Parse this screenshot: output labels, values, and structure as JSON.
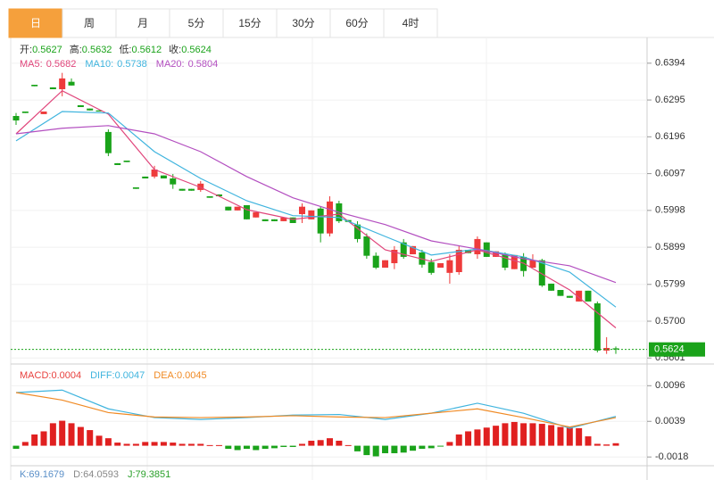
{
  "chart_data": {
    "type": "candlestick",
    "tabs": [
      "日",
      "周",
      "月",
      "5分",
      "15分",
      "30分",
      "60分",
      "4时"
    ],
    "active_tab": 0,
    "active_tab_color": "#f5a03c",
    "info_labels": [
      "开:",
      "高:",
      "低:",
      "收:"
    ],
    "info_value_color": "#1aa31a",
    "up_color": "#ee3b3b",
    "down_color": "#1aa31a",
    "grid": true,
    "ylim": [
      0.5592,
      0.6468
    ],
    "yticks": [
      0.6394,
      0.6295,
      0.6196,
      0.6097,
      0.5998,
      0.5899,
      0.5799,
      {
        "value": 0.57,
        "label": "0.5700"
      },
      0.5601
    ],
    "open": [
      0.6252,
      0.6264,
      0.6336,
      0.6257,
      0.6329,
      0.6324,
      0.6344,
      0.6281,
      0.6272,
      0.6267,
      0.6209,
      0.6125,
      0.6132,
      0.606,
      0.6089,
      0.6089,
      0.6092,
      0.6084,
      0.6056,
      0.6056,
      0.6053,
      0.6036,
      0.6041,
      0.6008,
      0.5998,
      0.6012,
      0.5979,
      0.5974,
      0.5974,
      0.5969,
      0.5979,
      0.5988,
      0.5974,
      0.6003,
      0.5936,
      0.6017,
      0.5972,
      0.596,
      0.5928,
      0.5876,
      0.5844,
      0.5856,
      0.5912,
      0.588,
      0.5885,
      0.5859,
      0.5844,
      0.583,
      0.5832,
      0.5892,
      0.588,
      0.5912,
      0.5873,
      0.588,
      0.584,
      0.5873,
      0.5844,
      0.5864,
      0.5801,
      0.5784,
      0.5768,
      0.5753,
      0.5782,
      0.5748,
      0.5621,
      0.5627
    ],
    "high": [
      0.626,
      0.6264,
      0.6336,
      0.6264,
      0.6329,
      0.6368,
      0.6353,
      0.6281,
      0.6272,
      0.6267,
      0.6216,
      0.6125,
      0.6132,
      0.606,
      0.6089,
      0.6118,
      0.6092,
      0.6096,
      0.6056,
      0.6056,
      0.6077,
      0.6036,
      0.6041,
      0.6008,
      0.6008,
      0.6012,
      0.5993,
      0.5974,
      0.5974,
      0.5979,
      0.5979,
      0.6017,
      0.5998,
      0.6008,
      0.6036,
      0.6024,
      0.5972,
      0.5969,
      0.5936,
      0.5885,
      0.5864,
      0.5902,
      0.5921,
      0.5902,
      0.5892,
      0.5868,
      0.5856,
      0.588,
      0.5902,
      0.5892,
      0.5928,
      0.5912,
      0.5888,
      0.5885,
      0.5878,
      0.5883,
      0.588,
      0.5868,
      0.5801,
      0.5784,
      0.5768,
      0.5782,
      0.5782,
      0.5753,
      0.5657,
      0.5632
    ],
    "low": [
      0.6228,
      0.626,
      0.6332,
      0.6257,
      0.6324,
      0.6305,
      0.6334,
      0.6276,
      0.6267,
      0.6264,
      0.6144,
      0.612,
      0.6128,
      0.6056,
      0.6084,
      0.6084,
      0.6084,
      0.6056,
      0.6051,
      0.6051,
      0.6048,
      0.6032,
      0.6036,
      0.5998,
      0.5998,
      0.5974,
      0.5979,
      0.5969,
      0.5969,
      0.5969,
      0.5964,
      0.5964,
      0.5974,
      0.5912,
      0.5928,
      0.5964,
      0.5967,
      0.5912,
      0.5868,
      0.584,
      0.5844,
      0.584,
      0.5868,
      0.588,
      0.5844,
      0.5825,
      0.5844,
      0.5801,
      0.5825,
      0.5883,
      0.5868,
      0.5873,
      0.5873,
      0.5837,
      0.584,
      0.582,
      0.5844,
      0.5792,
      0.5782,
      0.5768,
      0.5763,
      0.5753,
      0.5753,
      0.5616,
      0.5612,
      0.5612
    ],
    "close": [
      0.624,
      0.626,
      0.6332,
      0.6264,
      0.6324,
      0.6353,
      0.6334,
      0.6276,
      0.6267,
      0.6264,
      0.6152,
      0.612,
      0.6128,
      0.6056,
      0.6084,
      0.6108,
      0.6084,
      0.6068,
      0.6051,
      0.6051,
      0.607,
      0.6032,
      0.6036,
      0.5998,
      0.6008,
      0.5974,
      0.5993,
      0.5969,
      0.5969,
      0.5979,
      0.5964,
      0.6008,
      0.5998,
      0.5936,
      0.6022,
      0.5969,
      0.5967,
      0.5921,
      0.5876,
      0.5844,
      0.5864,
      0.5892,
      0.5873,
      0.5902,
      0.5852,
      0.583,
      0.5856,
      0.5864,
      0.5892,
      0.5883,
      0.5921,
      0.5873,
      0.5888,
      0.5844,
      0.5878,
      0.5835,
      0.5864,
      0.5796,
      0.5782,
      0.5768,
      0.5763,
      0.5782,
      0.5753,
      0.5621,
      0.5628,
      0.5624
    ],
    "last_price_color": "#1aa31a",
    "ma": [
      {
        "name": "MA5:",
        "color": "#e0457b",
        "x": [
          0,
          5,
          10,
          15,
          20,
          25,
          30,
          35,
          40,
          45,
          50,
          55,
          60,
          65
        ],
        "values": [
          0.6204,
          0.632,
          0.6257,
          0.6108,
          0.606,
          0.6,
          0.5974,
          0.5988,
          0.5892,
          0.5861,
          0.5892,
          0.5856,
          0.5784,
          0.5682
        ]
      },
      {
        "name": "MA10:",
        "color": "#3fb4de",
        "x": [
          0,
          5,
          10,
          15,
          20,
          25,
          30,
          35,
          40,
          45,
          50,
          55,
          60,
          65
        ],
        "values": [
          0.6185,
          0.6264,
          0.626,
          0.6156,
          0.6084,
          0.6024,
          0.5984,
          0.5979,
          0.5928,
          0.5878,
          0.5894,
          0.5873,
          0.5832,
          0.5738
        ]
      },
      {
        "name": "MA20:",
        "color": "#b34fc0",
        "x": [
          0,
          5,
          10,
          15,
          20,
          25,
          30,
          35,
          40,
          45,
          50,
          55,
          60,
          65
        ],
        "values": [
          0.6204,
          0.6219,
          0.6226,
          0.6204,
          0.6156,
          0.6089,
          0.6032,
          0.5993,
          0.596,
          0.5916,
          0.5894,
          0.5868,
          0.5849,
          0.5804
        ]
      }
    ],
    "macd": {
      "ylim": [
        -0.0032,
        0.0125
      ],
      "yticks": [
        0.0096,
        0.0039,
        -0.0018
      ],
      "histogram": {
        "name": "MACD:",
        "color": "#e8413e",
        "up_color": "#e02020",
        "down_color": "#1aa31a",
        "values": [
          -0.0005,
          0.0006,
          0.0018,
          0.0023,
          0.0036,
          0.004,
          0.0036,
          0.003,
          0.0025,
          0.0016,
          0.0012,
          0.0005,
          0.0003,
          0.0003,
          0.0006,
          0.0006,
          0.0006,
          0.0005,
          0.0003,
          0.0003,
          0.0003,
          0.0001,
          0.0001,
          -0.0005,
          -0.0007,
          -0.0005,
          -0.0007,
          -0.0005,
          -0.0004,
          -0.0002,
          -0.0002,
          0.0003,
          0.0008,
          0.0009,
          0.0012,
          0.0008,
          0.0001,
          -0.0009,
          -0.0015,
          -0.0017,
          -0.0012,
          -0.0012,
          -0.0011,
          -0.0008,
          -0.0005,
          -0.0004,
          -0.0001,
          0.0006,
          0.0018,
          0.0023,
          0.0026,
          0.0029,
          0.0032,
          0.0036,
          0.0038,
          0.0036,
          0.0036,
          0.0035,
          0.0033,
          0.003,
          0.003,
          0.0028,
          0.0015,
          0.0003,
          0.0002,
          0.0004
        ]
      },
      "lines": [
        {
          "name": "DIFF:",
          "color": "#3fb4de",
          "x": [
            0,
            5,
            10,
            15,
            20,
            25,
            30,
            35,
            40,
            45,
            50,
            55,
            60,
            65
          ],
          "values": [
            0.0085,
            0.0089,
            0.0059,
            0.0045,
            0.0042,
            0.0045,
            0.0049,
            0.005,
            0.0042,
            0.0052,
            0.0068,
            0.0052,
            0.0028,
            0.0047
          ]
        },
        {
          "name": "DEA:",
          "color": "#f08a24",
          "x": [
            0,
            5,
            10,
            15,
            20,
            25,
            30,
            35,
            40,
            45,
            50,
            55,
            60,
            65
          ],
          "values": [
            0.0085,
            0.0073,
            0.0053,
            0.0046,
            0.0045,
            0.0046,
            0.0048,
            0.0046,
            0.0045,
            0.0052,
            0.0059,
            0.0045,
            0.003,
            0.0045
          ]
        }
      ]
    },
    "kdj": [
      {
        "name": "K:",
        "color": "#5a8fc8",
        "value": 69.1679
      },
      {
        "name": "D:",
        "color": "#888888",
        "value": 64.0593
      },
      {
        "name": "J:",
        "color": "#2aa02a",
        "value": 79.3851
      }
    ]
  }
}
